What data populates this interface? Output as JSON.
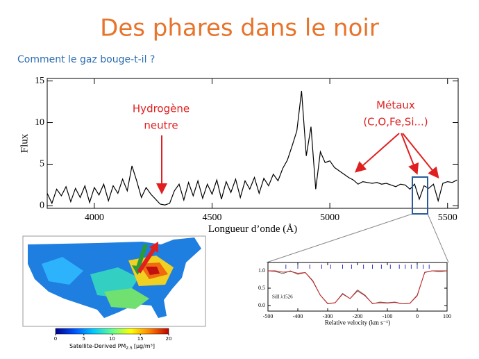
{
  "slide": {
    "title": "Des phares dans le noir",
    "subtitle": "Comment le gaz bouge-t-il ?"
  },
  "chart_data": [
    {
      "type": "line",
      "xlabel": "Longueur d’onde (Å)",
      "ylabel": "Flux",
      "annotations": [
        {
          "lines": [
            "Hydrogène",
            "neutre"
          ],
          "color": "#e02020"
        },
        {
          "lines": [
            "Métaux",
            "(C,O,Fe,Si...)"
          ],
          "color": "#e02020"
        }
      ],
      "xlim": [
        3800,
        5545
      ],
      "ylim": [
        -0.3,
        15.3
      ],
      "xticks": [
        4000,
        4500,
        5000,
        5500
      ],
      "yticks": [
        0,
        5,
        10,
        15
      ],
      "x": [
        3800,
        3820,
        3840,
        3860,
        3880,
        3900,
        3920,
        3940,
        3960,
        3980,
        4000,
        4020,
        4040,
        4060,
        4080,
        4100,
        4120,
        4140,
        4160,
        4180,
        4200,
        4220,
        4240,
        4260,
        4280,
        4300,
        4320,
        4340,
        4360,
        4380,
        4400,
        4420,
        4440,
        4460,
        4480,
        4500,
        4520,
        4540,
        4560,
        4580,
        4600,
        4620,
        4640,
        4660,
        4680,
        4700,
        4720,
        4740,
        4760,
        4780,
        4800,
        4820,
        4840,
        4860,
        4880,
        4900,
        4920,
        4940,
        4960,
        4980,
        5000,
        5020,
        5040,
        5060,
        5080,
        5100,
        5120,
        5140,
        5160,
        5180,
        5200,
        5220,
        5240,
        5260,
        5280,
        5300,
        5320,
        5340,
        5360,
        5380,
        5400,
        5420,
        5440,
        5460,
        5480,
        5500,
        5520,
        5540
      ],
      "series": [
        {
          "color": "#000000",
          "values": [
            1.5,
            0.3,
            2.0,
            1.2,
            2.3,
            0.5,
            2.1,
            1.0,
            2.4,
            0.4,
            2.2,
            1.3,
            2.6,
            0.6,
            2.4,
            1.5,
            3.2,
            1.8,
            4.8,
            3.0,
            1.0,
            2.2,
            1.4,
            0.8,
            0.2,
            0.1,
            0.3,
            1.8,
            2.6,
            0.7,
            2.8,
            1.2,
            3.0,
            0.9,
            2.6,
            1.4,
            3.1,
            0.8,
            2.9,
            1.6,
            3.2,
            1.0,
            3.0,
            2.0,
            3.4,
            1.5,
            3.3,
            2.4,
            3.8,
            3.0,
            4.5,
            5.5,
            7.2,
            9.0,
            13.8,
            6.0,
            9.5,
            2.0,
            6.5,
            5.2,
            5.4,
            4.6,
            4.2,
            3.8,
            3.4,
            3.1,
            2.6,
            2.9,
            2.8,
            2.7,
            2.8,
            2.6,
            2.7,
            2.5,
            2.3,
            2.6,
            2.5,
            2.0,
            2.6,
            0.8,
            2.4,
            2.1,
            2.6,
            0.6,
            2.7,
            2.9,
            2.8,
            3.1
          ]
        }
      ]
    },
    {
      "type": "line",
      "xlabel": "Relative velocity (km s⁻¹)",
      "annotation": "SiII λ1526",
      "xlim": [
        -500,
        100
      ],
      "ylim": [
        -0.16,
        1.24
      ],
      "xticks": [
        -500,
        -400,
        -300,
        -200,
        -100,
        0,
        100
      ],
      "yticks": [
        {
          "value": 0,
          "label": "0.0"
        },
        {
          "value": 0.5,
          "label": "0.5"
        },
        {
          "value": 1,
          "label": "1.0"
        }
      ],
      "components": [
        -440,
        -400,
        -360,
        -320,
        -290,
        -250,
        -220,
        -180,
        -150,
        -120,
        -90,
        -60,
        -40,
        -20,
        0,
        20,
        40
      ],
      "components_color": "#3333cc",
      "x": [
        -500,
        -475,
        -450,
        -425,
        -400,
        -375,
        -350,
        -325,
        -300,
        -275,
        -250,
        -225,
        -200,
        -175,
        -150,
        -125,
        -100,
        -75,
        -50,
        -25,
        0,
        25,
        50,
        75,
        100
      ],
      "series": [
        {
          "color": "#666666",
          "values": [
            1.0,
            0.98,
            0.92,
            1.0,
            0.9,
            0.95,
            0.7,
            0.3,
            0.05,
            0.08,
            0.35,
            0.2,
            0.45,
            0.3,
            0.05,
            0.1,
            0.08,
            0.1,
            0.05,
            0.06,
            0.3,
            0.95,
            1.0,
            0.97,
            1.0
          ]
        },
        {
          "color": "#cc2222",
          "values": [
            1.0,
            1.0,
            0.96,
            0.98,
            0.93,
            0.95,
            0.72,
            0.3,
            0.06,
            0.08,
            0.33,
            0.2,
            0.42,
            0.28,
            0.06,
            0.08,
            0.07,
            0.09,
            0.05,
            0.06,
            0.28,
            0.96,
            1.0,
            1.0,
            1.0
          ]
        }
      ]
    },
    {
      "type": "colorbar",
      "label": "Satellite-Derived PM",
      "label_sub": "2.5",
      "label_unit": "[μg/m³]",
      "xlim": [
        0,
        20
      ],
      "xticks": [
        0,
        5,
        10,
        15,
        20
      ],
      "colormap": [
        "#00008b",
        "#0050ff",
        "#00c8ff",
        "#60ff90",
        "#ffff00",
        "#ff8000",
        "#c00000"
      ]
    }
  ]
}
